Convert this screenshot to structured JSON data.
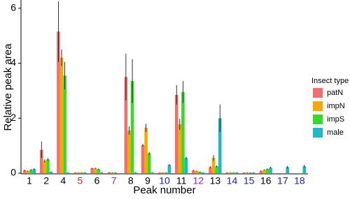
{
  "chart_data": {
    "type": "bar",
    "x_label": "Peak number",
    "y_label": "Relative peak area",
    "categories": [
      "1",
      "2",
      "4",
      "5",
      "6",
      "7",
      "8",
      "9",
      "10",
      "11",
      "12",
      "13",
      "14",
      "15",
      "16",
      "17",
      "18"
    ],
    "category_colors": [
      "#000000",
      "#000000",
      "#000000",
      "#e02020",
      "#000000",
      "#9a20d0",
      "#000000",
      "#000000",
      "#1a1ad0",
      "#000000",
      "#9a20d0",
      "#000000",
      "#1a1ad0",
      "#1a1ad0",
      "#000000",
      "#1a1ad0",
      "#1a1ad0"
    ],
    "series": [
      {
        "name": "patN",
        "color": "#f07070",
        "values": [
          0.1,
          0.85,
          5.15,
          0.02,
          0.18,
          0.03,
          3.5,
          1.02,
          0.02,
          2.85,
          0.1,
          0.22,
          0.02,
          0.02,
          0.08,
          0,
          0
        ],
        "errors": [
          0.03,
          0.3,
          1.1,
          0.01,
          0.02,
          0.01,
          0.85,
          0.05,
          0.01,
          0.35,
          0.02,
          0.03,
          0.01,
          0.01,
          0.02,
          0,
          0
        ]
      },
      {
        "name": "impN",
        "color": "#ffa500",
        "values": [
          0.08,
          0.45,
          4.2,
          0.02,
          0.18,
          0.02,
          1.55,
          1.65,
          0.02,
          1.78,
          0.08,
          0.55,
          0.02,
          0.02,
          0.12,
          0,
          0
        ],
        "errors": [
          0.02,
          0.05,
          0.3,
          0.01,
          0.02,
          0.01,
          0.15,
          0.15,
          0.01,
          0.2,
          0.02,
          0.1,
          0.01,
          0.01,
          0.02,
          0,
          0
        ]
      },
      {
        "name": "impS",
        "color": "#33dd22",
        "values": [
          0.12,
          0.5,
          3.55,
          0.02,
          0.15,
          0.02,
          3.35,
          0.72,
          0.02,
          2.95,
          0.05,
          0.25,
          0.02,
          0.02,
          0.15,
          0,
          0
        ],
        "errors": [
          0.03,
          0.05,
          0.5,
          0.01,
          0.02,
          0.01,
          0.8,
          0.05,
          0.01,
          0.4,
          0.01,
          0.03,
          0.01,
          0.01,
          0.02,
          0,
          0
        ]
      },
      {
        "name": "male",
        "color": "#20b8c8",
        "values": [
          0.15,
          0.05,
          0.02,
          0.02,
          0.02,
          0,
          0.02,
          0.02,
          0.3,
          0.55,
          0.02,
          2.0,
          0.02,
          0.02,
          0.2,
          0.22,
          0.25
        ],
        "errors": [
          0.03,
          0.01,
          0.01,
          0.01,
          0.01,
          0,
          0.01,
          0.01,
          0.03,
          0.05,
          0.01,
          0.5,
          0.01,
          0.01,
          0.03,
          0.05,
          0.05
        ]
      }
    ],
    "ylim": [
      0,
      6.3
    ],
    "yticks": [
      0,
      2,
      4,
      6
    ],
    "legend_title": "Insect type",
    "legend": "right"
  }
}
